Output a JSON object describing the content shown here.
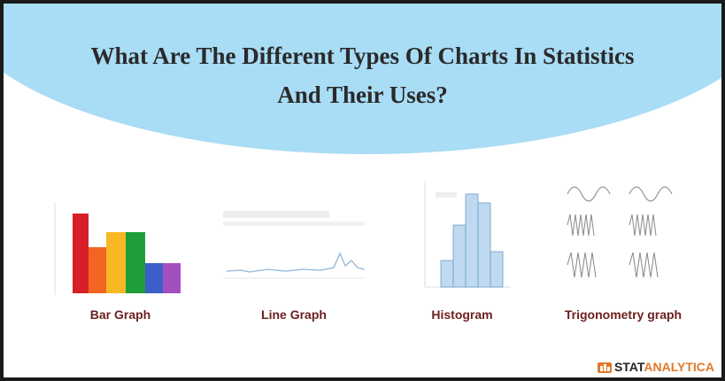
{
  "header": {
    "title_lines": [
      "What Are The Different Types Of Charts In Statistics",
      "And Their Uses?"
    ]
  },
  "panels": [
    {
      "caption": "Bar Graph"
    },
    {
      "caption": "Line Graph"
    },
    {
      "caption": "Histogram"
    },
    {
      "caption": "Trigonometry graph"
    }
  ],
  "logo": {
    "parts": [
      "STAT",
      "ANALYTICA"
    ]
  }
}
